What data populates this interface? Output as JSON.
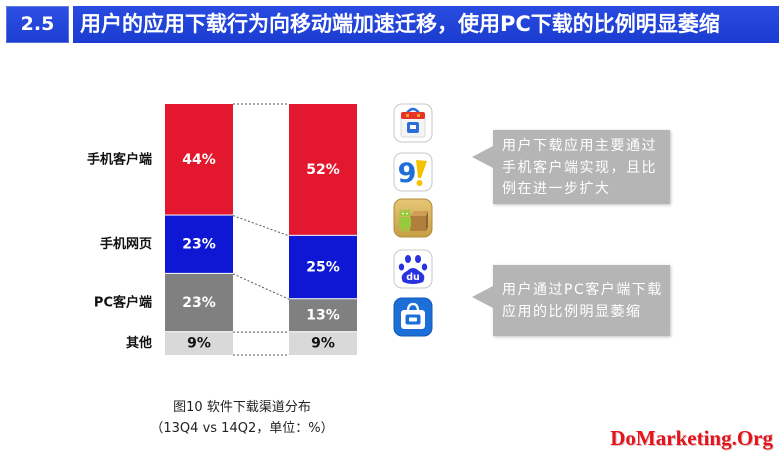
{
  "header": {
    "section": "2.5",
    "title": "用户的应用下载行为向移动端加速迁移，使用PC下载的比例明显萎缩",
    "color": "#1b3fd4"
  },
  "chart_data": {
    "type": "bar",
    "stacked": true,
    "title": "图10 软件下载渠道分布",
    "categories": [
      "13Q4",
      "14Q2"
    ],
    "unit": "%",
    "legend_placement": "left",
    "grid": false,
    "series": [
      {
        "name": "手机客户端",
        "values": [
          44,
          52
        ],
        "color": "#e3172e",
        "label_color": "#ffffff"
      },
      {
        "name": "手机网页",
        "values": [
          23,
          25
        ],
        "color": "#0d17d4",
        "label_color": "#ffffff"
      },
      {
        "name": "PC客户端",
        "values": [
          23,
          13
        ],
        "color": "#808080",
        "label_color": "#ffffff"
      },
      {
        "name": "其他",
        "values": [
          9,
          9
        ],
        "color": "#d9d9d9",
        "label_color": "#111111"
      }
    ]
  },
  "caption": {
    "open": "（",
    "vs": " vs ",
    "unit_prefix": "，单位：",
    "close": "）"
  },
  "icons": [
    {
      "name": "shopping-bag-app-icon"
    },
    {
      "name": "nine-exclamation-app-icon",
      "glyph": "9"
    },
    {
      "name": "android-box-app-icon"
    },
    {
      "name": "baidu-paw-app-icon",
      "glyph": "du"
    },
    {
      "name": "blue-bag-app-icon"
    }
  ],
  "callouts": [
    {
      "lines": [
        "用户下载应用主要通过",
        "手机客户端实现，且比",
        "例在进一步扩大"
      ],
      "color": "#b5b5b5"
    },
    {
      "lines": [
        "用户通过PC客户端下载",
        "应用的比例明显萎缩"
      ],
      "color": "#b5b5b5"
    }
  ],
  "watermark": {
    "text": "DoMarketing.Org",
    "color": "#e3141c"
  }
}
